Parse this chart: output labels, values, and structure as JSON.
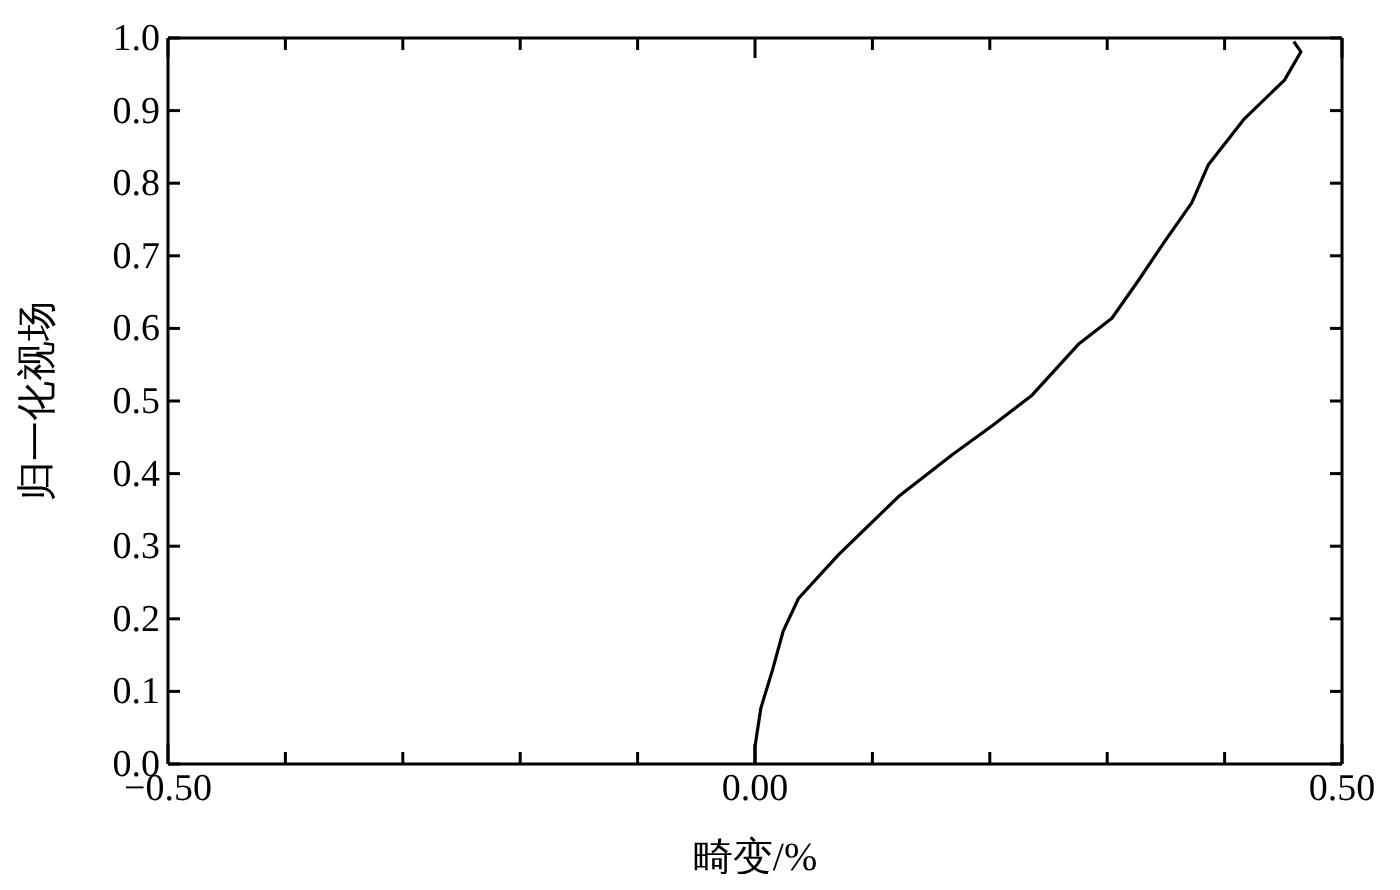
{
  "chart_data": {
    "type": "line",
    "xlabel": "畸变/%",
    "ylabel": "归一化视场",
    "xlim": [
      -0.5,
      0.5
    ],
    "xticks": [
      {
        "value": -0.5,
        "label": "−0.50"
      },
      {
        "value": -0.4,
        "label": null
      },
      {
        "value": -0.3,
        "label": null
      },
      {
        "value": -0.2,
        "label": null
      },
      {
        "value": -0.1,
        "label": null
      },
      {
        "value": 0,
        "label": "0.00"
      },
      {
        "value": 0.1,
        "label": null
      },
      {
        "value": 0.2,
        "label": null
      },
      {
        "value": 0.3,
        "label": null
      },
      {
        "value": 0.4,
        "label": null
      },
      {
        "value": 0.5,
        "label": "0.50"
      }
    ],
    "ylim": [
      0,
      1
    ],
    "yticks": [
      {
        "value": 0,
        "label": "0.0"
      },
      0.1,
      0.2,
      0.3,
      0.4,
      0.5,
      0.6,
      0.7,
      0.8,
      0.9,
      {
        "value": 1,
        "label": "1.0"
      }
    ],
    "marker": "none",
    "line_style": "solid",
    "series": [
      {
        "color": "#000000",
        "x": [
          0,
          0,
          0.005,
          0.015,
          0.024,
          0.037,
          0.071,
          0.122,
          0.168,
          0.202,
          0.236,
          0.276,
          0.304,
          0.327,
          0.349,
          0.372,
          0.386,
          0.417,
          0.451,
          0.465,
          0.459
        ],
        "values": [
          0,
          0.024,
          0.077,
          0.13,
          0.183,
          0.228,
          0.288,
          0.368,
          0.426,
          0.466,
          0.508,
          0.579,
          0.614,
          0.667,
          0.72,
          0.773,
          0.825,
          0.889,
          0.942,
          0.981,
          0.995
        ]
      }
    ]
  }
}
